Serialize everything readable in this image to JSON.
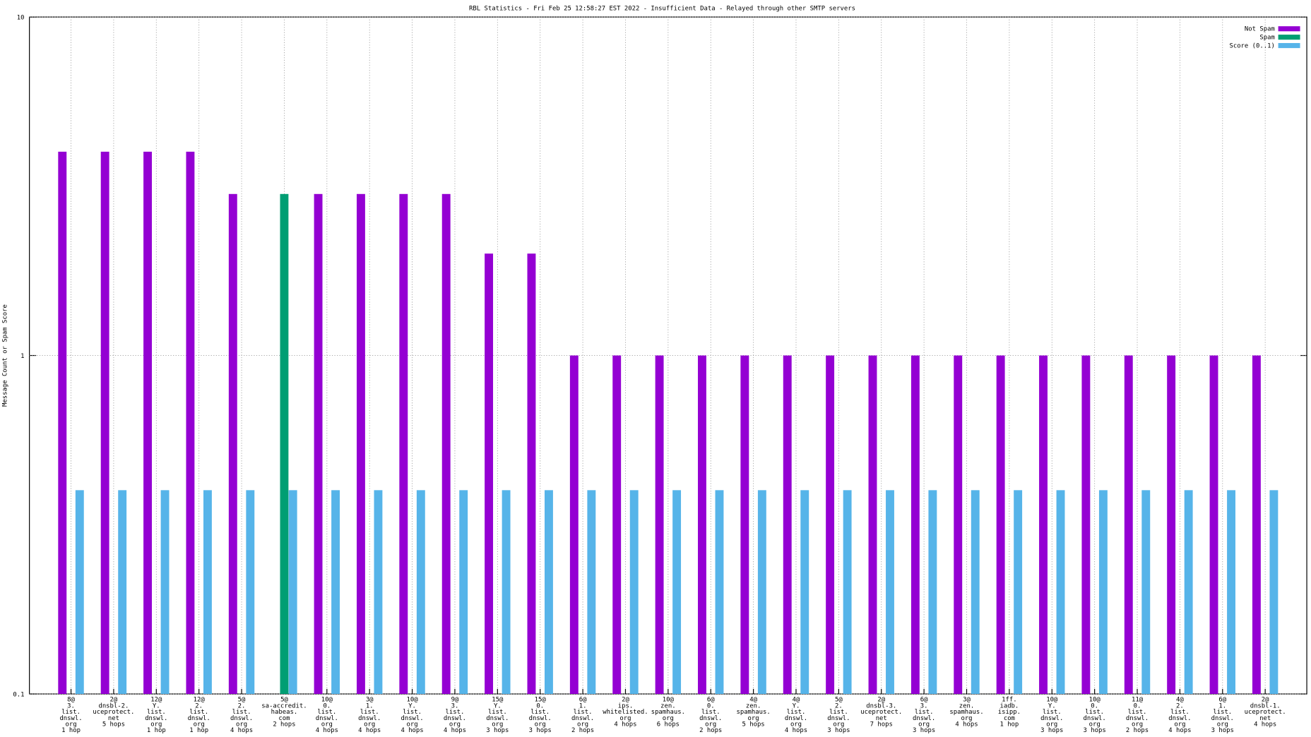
{
  "chart_data": {
    "type": "bar",
    "log_scale": true,
    "grid": true,
    "legend": "top-right",
    "title": "RBL Statistics - Fri Feb 25 12:58:27 EST 2022 - Insufficient Data - Relayed through other SMTP servers",
    "y_label": "Message Count or Spam Score",
    "categories": [
      [
        "8@",
        "3.",
        "list.",
        "dnswl.",
        "org",
        "1 hop"
      ],
      [
        "2@",
        "dnsbl-2.",
        "uceprotect.",
        "net",
        "5 hops"
      ],
      [
        "12@",
        "Y.",
        "list.",
        "dnswl.",
        "org",
        "1 hop"
      ],
      [
        "12@",
        "2.",
        "list.",
        "dnswl.",
        "org",
        "1 hop"
      ],
      [
        "5@",
        "2.",
        "list.",
        "dnswl.",
        "org",
        "4 hops"
      ],
      [
        "5@",
        "sa-accredit.",
        "habeas.",
        "com",
        "2 hops"
      ],
      [
        "10@",
        "0.",
        "list.",
        "dnswl.",
        "org",
        "4 hops"
      ],
      [
        "3@",
        "1.",
        "list.",
        "dnswl.",
        "org",
        "4 hops"
      ],
      [
        "10@",
        "Y.",
        "list.",
        "dnswl.",
        "org",
        "4 hops"
      ],
      [
        "9@",
        "3.",
        "list.",
        "dnswl.",
        "org",
        "4 hops"
      ],
      [
        "15@",
        "Y.",
        "list.",
        "dnswl.",
        "org",
        "3 hops"
      ],
      [
        "15@",
        "0.",
        "list.",
        "dnswl.",
        "org",
        "3 hops"
      ],
      [
        "6@",
        "1.",
        "list.",
        "dnswl.",
        "org",
        "2 hops"
      ],
      [
        "2@",
        "ips.",
        "whitelisted.",
        "org",
        "4 hops"
      ],
      [
        "10@",
        "zen.",
        "spamhaus.",
        "org",
        "6 hops"
      ],
      [
        "6@",
        "0.",
        "list.",
        "dnswl.",
        "org",
        "2 hops"
      ],
      [
        "4@",
        "zen.",
        "spamhaus.",
        "org",
        "5 hops"
      ],
      [
        "4@",
        "Y.",
        "list.",
        "dnswl.",
        "org",
        "4 hops"
      ],
      [
        "5@",
        "2.",
        "list.",
        "dnswl.",
        "org",
        "3 hops"
      ],
      [
        "2@",
        "dnsbl-3.",
        "uceprotect.",
        "net",
        "7 hops"
      ],
      [
        "6@",
        "3.",
        "list.",
        "dnswl.",
        "org",
        "3 hops"
      ],
      [
        "3@",
        "zen.",
        "spamhaus.",
        "org",
        "4 hops"
      ],
      [
        "1ff.",
        "iadb.",
        "isipp.",
        "com",
        "1 hop"
      ],
      [
        "10@",
        "Y.",
        "list.",
        "dnswl.",
        "org",
        "3 hops"
      ],
      [
        "10@",
        "0.",
        "list.",
        "dnswl.",
        "org",
        "3 hops"
      ],
      [
        "11@",
        "0.",
        "list.",
        "dnswl.",
        "org",
        "2 hops"
      ],
      [
        "4@",
        "2.",
        "list.",
        "dnswl.",
        "org",
        "4 hops"
      ],
      [
        "6@",
        "1.",
        "list.",
        "dnswl.",
        "org",
        "3 hops"
      ],
      [
        "2@",
        "dnsbl-1.",
        "uceprotect.",
        "net",
        "4 hops"
      ]
    ],
    "series": [
      {
        "name": "Not Spam",
        "color": "#9400d3",
        "values": [
          4,
          4,
          4,
          4,
          3,
          null,
          3,
          3,
          3,
          3,
          2,
          2,
          1,
          1,
          1,
          1,
          1,
          1,
          1,
          1,
          1,
          1,
          1,
          1,
          1,
          1,
          1,
          1,
          1
        ]
      },
      {
        "name": "Spam",
        "color": "#009e73",
        "values": [
          null,
          null,
          null,
          null,
          null,
          3,
          null,
          null,
          null,
          null,
          null,
          null,
          null,
          null,
          null,
          null,
          null,
          null,
          null,
          null,
          null,
          null,
          null,
          null,
          null,
          null,
          null,
          null,
          null
        ]
      },
      {
        "name": "Score (0..1)",
        "color": "#56b4e9",
        "values": [
          0.4,
          0.4,
          0.4,
          0.4,
          0.4,
          0.4,
          0.4,
          0.4,
          0.4,
          0.4,
          0.4,
          0.4,
          0.4,
          0.4,
          0.4,
          0.4,
          0.4,
          0.4,
          0.4,
          0.4,
          0.4,
          0.4,
          0.4,
          0.4,
          0.4,
          0.4,
          0.4,
          0.4,
          0.4
        ]
      }
    ],
    "ylim": [
      0.1,
      10
    ],
    "yticks": [
      0.1,
      1,
      10
    ]
  }
}
